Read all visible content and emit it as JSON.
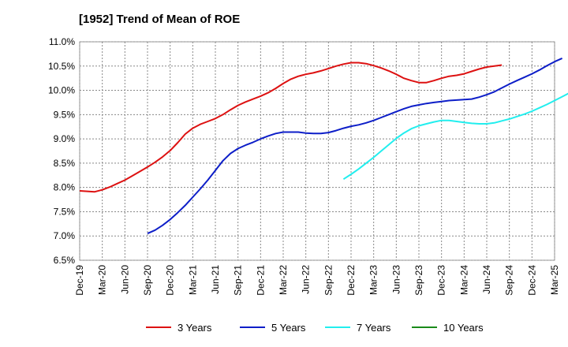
{
  "chart_data": {
    "type": "line",
    "title": "[1952]  Trend of Mean of ROE",
    "xlabel": "",
    "ylabel": "",
    "x_ticks": [
      "Dec-19",
      "Mar-20",
      "Jun-20",
      "Sep-20",
      "Dec-20",
      "Mar-21",
      "Jun-21",
      "Sep-21",
      "Dec-21",
      "Mar-22",
      "Jun-22",
      "Sep-22",
      "Dec-22",
      "Mar-23",
      "Jun-23",
      "Sep-23",
      "Dec-23",
      "Mar-24",
      "Jun-24",
      "Sep-24",
      "Dec-24",
      "Mar-25"
    ],
    "y_ticks": [
      "6.5%",
      "7.0%",
      "7.5%",
      "8.0%",
      "8.5%",
      "9.0%",
      "9.5%",
      "10.0%",
      "10.5%",
      "11.0%"
    ],
    "ylim": [
      6.5,
      11.0
    ],
    "grid": true,
    "legend_position": "bottom",
    "series": [
      {
        "name": "3 Years",
        "color": "#dd1111",
        "start": 0,
        "values": [
          7.93,
          7.92,
          7.91,
          7.95,
          8.01,
          8.08,
          8.15,
          8.24,
          8.33,
          8.42,
          8.52,
          8.63,
          8.76,
          8.92,
          9.1,
          9.22,
          9.3,
          9.36,
          9.42,
          9.5,
          9.6,
          9.69,
          9.76,
          9.82,
          9.88,
          9.95,
          10.04,
          10.14,
          10.23,
          10.29,
          10.33,
          10.36,
          10.4,
          10.45,
          10.5,
          10.54,
          10.57,
          10.57,
          10.55,
          10.51,
          10.46,
          10.4,
          10.33,
          10.25,
          10.2,
          10.16,
          10.16,
          10.2,
          10.25,
          10.29,
          10.31,
          10.34,
          10.39,
          10.44,
          10.48,
          10.5,
          10.52
        ]
      },
      {
        "name": "5 Years",
        "color": "#0d1ec8",
        "start": 9,
        "values": [
          7.05,
          7.12,
          7.22,
          7.34,
          7.48,
          7.63,
          7.8,
          7.97,
          8.15,
          8.35,
          8.55,
          8.7,
          8.8,
          8.87,
          8.93,
          9.0,
          9.06,
          9.11,
          9.14,
          9.14,
          9.14,
          9.12,
          9.11,
          9.11,
          9.13,
          9.17,
          9.22,
          9.26,
          9.29,
          9.33,
          9.38,
          9.44,
          9.5,
          9.56,
          9.62,
          9.67,
          9.7,
          9.73,
          9.75,
          9.77,
          9.79,
          9.8,
          9.81,
          9.82,
          9.86,
          9.91,
          9.97,
          10.05,
          10.13,
          10.2,
          10.27,
          10.34,
          10.42,
          10.51,
          10.59,
          10.66
        ]
      },
      {
        "name": "7 Years",
        "color": "#22eeee",
        "start": 35,
        "values": [
          8.17,
          8.27,
          8.38,
          8.5,
          8.62,
          8.75,
          8.88,
          9.01,
          9.12,
          9.21,
          9.27,
          9.31,
          9.35,
          9.38,
          9.38,
          9.36,
          9.34,
          9.32,
          9.31,
          9.31,
          9.33,
          9.37,
          9.41,
          9.46,
          9.51,
          9.57,
          9.64,
          9.71,
          9.79,
          9.87,
          9.95
        ]
      },
      {
        "name": "10 Years",
        "color": "#1a8a1a",
        "start": 0,
        "values": []
      }
    ]
  }
}
